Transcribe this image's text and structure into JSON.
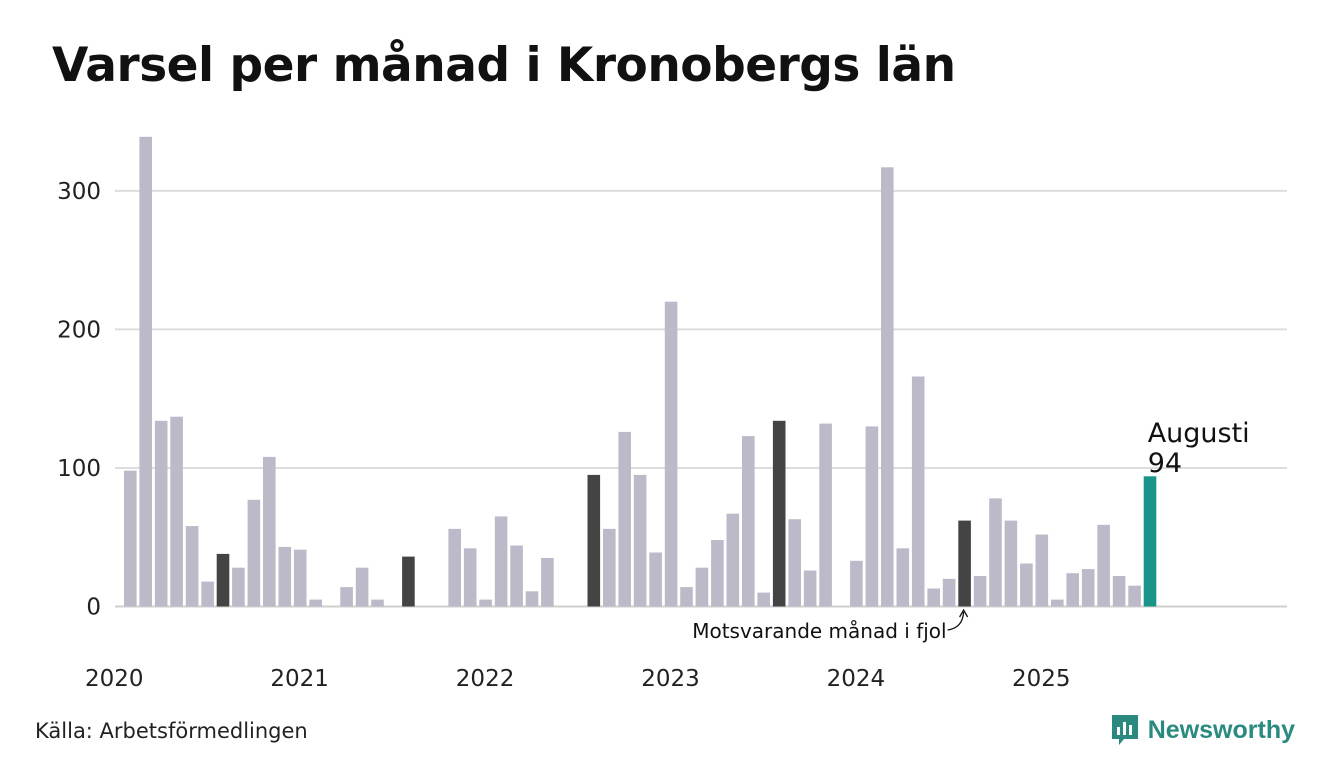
{
  "title": "Varsel per månad i Kronobergs län",
  "source": "Källa: Arbetsförmedlingen",
  "brand": "Newsworthy",
  "colors": {
    "bar": "#bcbac8",
    "highlight_prior": "#444444",
    "current": "#1a9488",
    "grid": "#dddddd",
    "brand": "#2a8a80"
  },
  "chart_data": {
    "type": "bar",
    "title": "Varsel per månad i Kronobergs län",
    "xlabel": "",
    "ylabel": "",
    "ylim": [
      0,
      340
    ],
    "yticks": [
      0,
      100,
      200,
      300
    ],
    "grid": true,
    "year_labels": [
      "2020",
      "2021",
      "2022",
      "2023",
      "2024",
      "2025"
    ],
    "start": "2020-02",
    "end": "2025-08",
    "values": [
      98,
      339,
      134,
      137,
      58,
      18,
      38,
      28,
      77,
      108,
      43,
      41,
      5,
      0,
      14,
      28,
      5,
      0,
      36,
      0,
      0,
      56,
      42,
      5,
      65,
      44,
      11,
      35,
      0,
      0,
      95,
      56,
      126,
      95,
      39,
      220,
      14,
      28,
      48,
      67,
      123,
      10,
      134,
      63,
      26,
      132,
      0,
      33,
      130,
      317,
      42,
      166,
      13,
      20,
      62,
      22,
      78,
      62,
      31,
      52,
      5,
      24,
      27,
      59,
      22,
      15,
      94
    ],
    "highlight_dark_months": [
      "2020-08",
      "2021-08",
      "2022-08",
      "2023-08",
      "2024-08"
    ],
    "highlight_current_month": "2025-08",
    "annotations": {
      "current_label": "Augusti",
      "current_value": "94",
      "prior_label": "Motsvarande månad i fjol"
    }
  }
}
